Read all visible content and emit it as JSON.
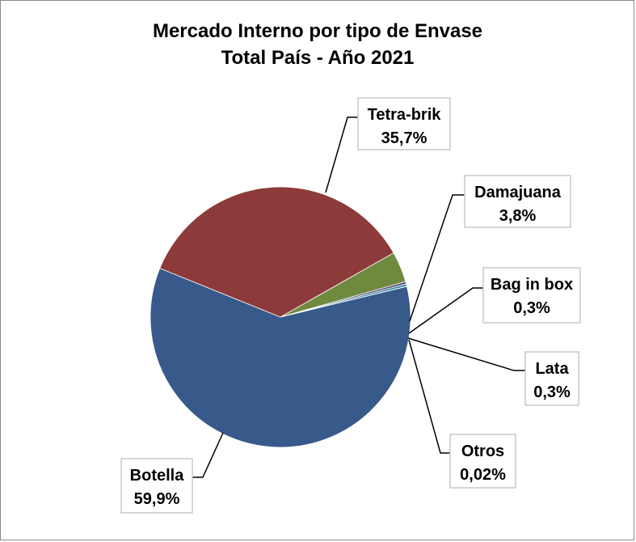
{
  "chart_data": {
    "type": "pie",
    "title": "Mercado Interno por tipo de Envase",
    "subtitle": "Total País - Año 2021",
    "slices": [
      {
        "label": "Tetra-brik",
        "value_text": "35,7%",
        "value": 35.7,
        "color": "#8C3A3A"
      },
      {
        "label": "Damajuana",
        "value_text": "3,8%",
        "value": 3.8,
        "color": "#6F8A3E"
      },
      {
        "label": "Bag in box",
        "value_text": "0,3%",
        "value": 0.3,
        "color": "#5C4B7A"
      },
      {
        "label": "Lata",
        "value_text": "0,3%",
        "value": 0.3,
        "color": "#3A8FA3"
      },
      {
        "label": "Otros",
        "value_text": "0,02%",
        "value": 0.02,
        "color": "#C07A2E"
      },
      {
        "label": "Botella",
        "value_text": "59,9%",
        "value": 59.9,
        "color": "#375A8A"
      }
    ],
    "legend": "none",
    "data_labels": "callouts"
  }
}
